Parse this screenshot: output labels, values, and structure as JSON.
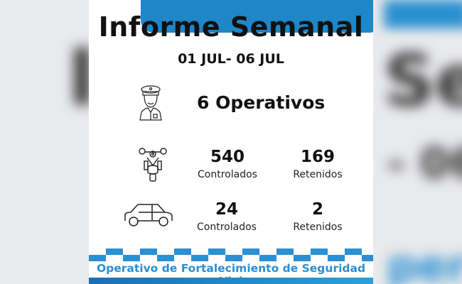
{
  "title": "Informe Semanal",
  "date_range": "01 JUL- 06 JUL",
  "operativos": "6 Operativos",
  "motos": {
    "controlados": "540",
    "controlados_label": "Controlados",
    "retenidos": "169",
    "retenidos_label": "Retenidos"
  },
  "autos": {
    "controlados": "24",
    "controlados_label": "Controlados",
    "retenidos": "2",
    "retenidos_label": "Retenidos"
  },
  "footer": "Operativo de Fortalecimiento de Seguridad Vial",
  "colors": {
    "accent": "#1f86c8",
    "footer_text": "#2a8ed2"
  }
}
